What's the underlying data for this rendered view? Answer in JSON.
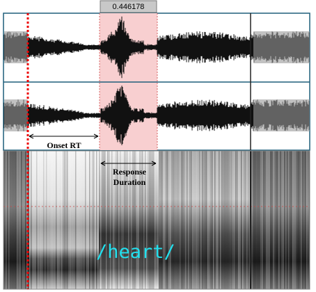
{
  "selection": {
    "duration": "0.446178"
  },
  "annotations": {
    "onset_rt": "Onset RT",
    "response_duration": [
      "Response",
      "Duration"
    ]
  },
  "spectrogram": {
    "word": "/heart/"
  }
}
